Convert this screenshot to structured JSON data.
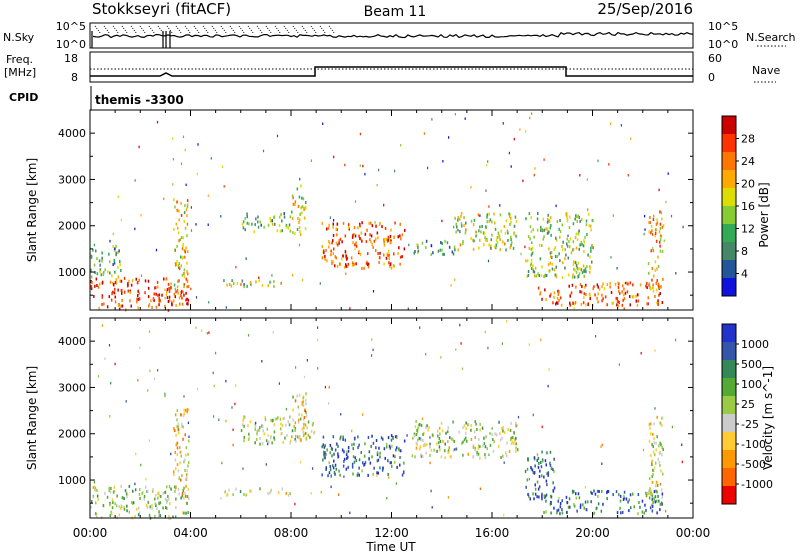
{
  "header": {
    "station": "Stokkseyri (fitACF)",
    "beam": "Beam 11",
    "date": "25/Sep/2016"
  },
  "top_panels": {
    "nsky_label": "N.Sky",
    "nsky_ticks": [
      "10^5",
      "10^0"
    ],
    "nsearch_label": "N.Search",
    "nsearch_ticks": [
      "10^5",
      "10^0"
    ],
    "freq_label_line1": "Freq.",
    "freq_label_line2": "[MHz]",
    "freq_ticks": [
      "18",
      "8"
    ],
    "nave_label": "Nave",
    "nave_ticks": [
      "60",
      "0"
    ],
    "cpid_label": "CPID",
    "cpid_value": "themis -3300"
  },
  "chart_data": [
    {
      "type": "heatmap",
      "name": "power",
      "ylabel": "Slant Range [km]",
      "y_ticks": [
        "4000",
        "3000",
        "2000",
        "1000"
      ],
      "ylim": [
        180,
        4500
      ],
      "colorbar": {
        "label": "Power [dB]",
        "ticks": [
          "28",
          "24",
          "20",
          "16",
          "12",
          "8",
          "4"
        ],
        "colors": [
          "#cc0000",
          "#ff3300",
          "#ff7700",
          "#ffaa00",
          "#dddd00",
          "#88cc33",
          "#33aa55",
          "#448866",
          "#225599",
          "#1111dd"
        ]
      },
      "features": [
        {
          "t0": 0.0,
          "t1": 3.9,
          "r0": 200,
          "r1": 900,
          "level": 0.85
        },
        {
          "t0": 0.0,
          "t1": 1.2,
          "r0": 900,
          "r1": 1600,
          "level": 0.4
        },
        {
          "t0": 3.3,
          "t1": 3.9,
          "r0": 500,
          "r1": 2600,
          "level": 0.6
        },
        {
          "t0": 5.3,
          "t1": 8.0,
          "r0": 700,
          "r1": 850,
          "level": 0.5
        },
        {
          "t0": 6.0,
          "t1": 8.0,
          "r0": 1900,
          "r1": 2300,
          "level": 0.4
        },
        {
          "t0": 8.0,
          "t1": 8.6,
          "r0": 1800,
          "r1": 2900,
          "level": 0.55
        },
        {
          "t0": 9.2,
          "t1": 12.5,
          "r0": 1100,
          "r1": 2100,
          "level": 0.8
        },
        {
          "t0": 12.8,
          "t1": 14.5,
          "r0": 1400,
          "r1": 1700,
          "level": 0.3
        },
        {
          "t0": 14.5,
          "t1": 17.0,
          "r0": 1500,
          "r1": 2300,
          "level": 0.5
        },
        {
          "t0": 17.3,
          "t1": 20.0,
          "r0": 900,
          "r1": 2300,
          "level": 0.45
        },
        {
          "t0": 17.8,
          "t1": 22.8,
          "r0": 300,
          "r1": 800,
          "level": 0.8
        },
        {
          "t0": 22.2,
          "t1": 22.8,
          "r0": 600,
          "r1": 2400,
          "level": 0.65
        }
      ]
    },
    {
      "type": "heatmap",
      "name": "velocity",
      "ylabel": "Slant Range [km]",
      "y_ticks": [
        "4000",
        "3000",
        "2000",
        "1000"
      ],
      "ylim": [
        180,
        4500
      ],
      "colorbar": {
        "label": "Velocity [m s^-1]",
        "ticks": [
          "1000",
          "500",
          "100",
          "25",
          "-25",
          "-100",
          "-500",
          "-1000"
        ],
        "colors": [
          "#2233cc",
          "#3355aa",
          "#338855",
          "#55aa33",
          "#99cc44",
          "#cccccc",
          "#ffcc33",
          "#ff9900",
          "#ff6600",
          "#ee0000"
        ]
      },
      "features": [
        {
          "t0": 0.0,
          "t1": 3.9,
          "r0": 200,
          "r1": 900,
          "level": 0.55
        },
        {
          "t0": 3.3,
          "t1": 3.9,
          "r0": 500,
          "r1": 2600,
          "level": 0.35
        },
        {
          "t0": 5.3,
          "t1": 8.0,
          "r0": 700,
          "r1": 850,
          "level": 0.5
        },
        {
          "t0": 6.0,
          "t1": 9.0,
          "r0": 1800,
          "r1": 2400,
          "level": 0.52
        },
        {
          "t0": 8.0,
          "t1": 8.6,
          "r0": 1800,
          "r1": 2900,
          "level": 0.4
        },
        {
          "t0": 9.2,
          "t1": 12.5,
          "r0": 1100,
          "r1": 2000,
          "level": 0.8
        },
        {
          "t0": 12.8,
          "t1": 17.0,
          "r0": 1500,
          "r1": 2300,
          "level": 0.52
        },
        {
          "t0": 17.3,
          "t1": 18.5,
          "r0": 600,
          "r1": 1700,
          "level": 0.82
        },
        {
          "t0": 18.0,
          "t1": 22.8,
          "r0": 300,
          "r1": 800,
          "level": 0.8
        },
        {
          "t0": 22.2,
          "t1": 22.8,
          "r0": 600,
          "r1": 2400,
          "level": 0.45
        }
      ]
    }
  ],
  "x_axis": {
    "label": "Time UT",
    "ticks": [
      "00:00",
      "04:00",
      "08:00",
      "12:00",
      "16:00",
      "20:00",
      "00:00"
    ]
  }
}
